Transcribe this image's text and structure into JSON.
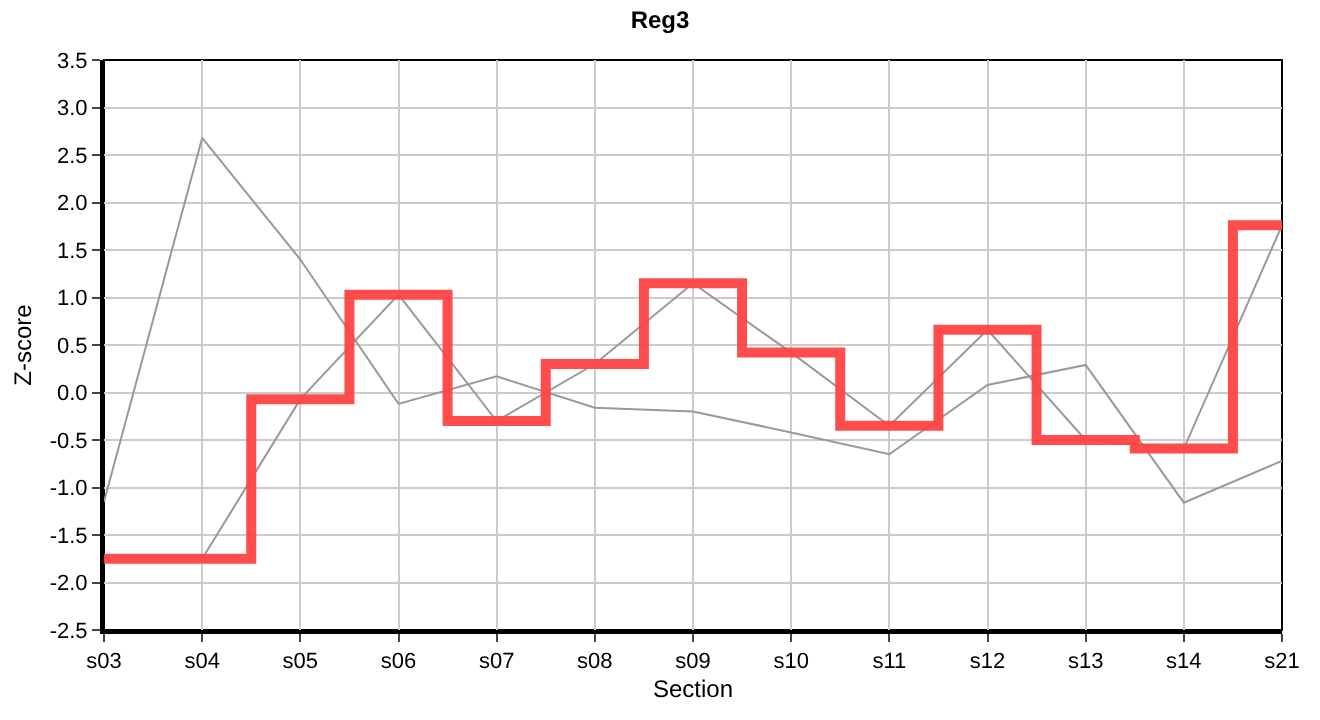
{
  "chart_data": {
    "type": "line",
    "title": "Reg3",
    "xlabel": "Section",
    "ylabel": "Z-score",
    "categories": [
      "s03",
      "s04",
      "s05",
      "s06",
      "s07",
      "s08",
      "s09",
      "s10",
      "s11",
      "s12",
      "s13",
      "s14",
      "s21"
    ],
    "series": [
      {
        "color": "#999999",
        "values": [
          -1.15,
          2.68,
          1.4,
          -0.12,
          0.17,
          -0.16,
          -0.2,
          -0.42,
          -0.65,
          0.08,
          0.29,
          -1.16,
          -0.72
        ]
      },
      {
        "color": "#999999",
        "values": [
          null,
          -1.75,
          -0.07,
          1.03,
          -0.3,
          0.3,
          1.15,
          0.42,
          -0.35,
          0.66,
          -0.5,
          -0.59,
          1.76
        ]
      },
      {
        "type": "step",
        "color": "#ff4444",
        "values": [
          -1.75,
          -1.75,
          -0.07,
          1.03,
          -0.3,
          0.3,
          1.15,
          0.42,
          -0.35,
          0.66,
          -0.5,
          -0.59,
          1.76
        ]
      }
    ],
    "ylim": [
      -2.5,
      3.5
    ],
    "yticks": [
      -2.5,
      {
        "value": -2,
        "label": "-2.0"
      },
      -1.5,
      {
        "value": -1,
        "label": "-1.0"
      },
      -0.5,
      {
        "value": 0,
        "label": "0.0"
      },
      0.5,
      {
        "value": 1,
        "label": "1.0"
      },
      1.5,
      {
        "value": 2,
        "label": "2.0"
      },
      2.5,
      {
        "value": 3,
        "label": "3.0"
      },
      3.5
    ],
    "grid": true,
    "marker": "none"
  }
}
